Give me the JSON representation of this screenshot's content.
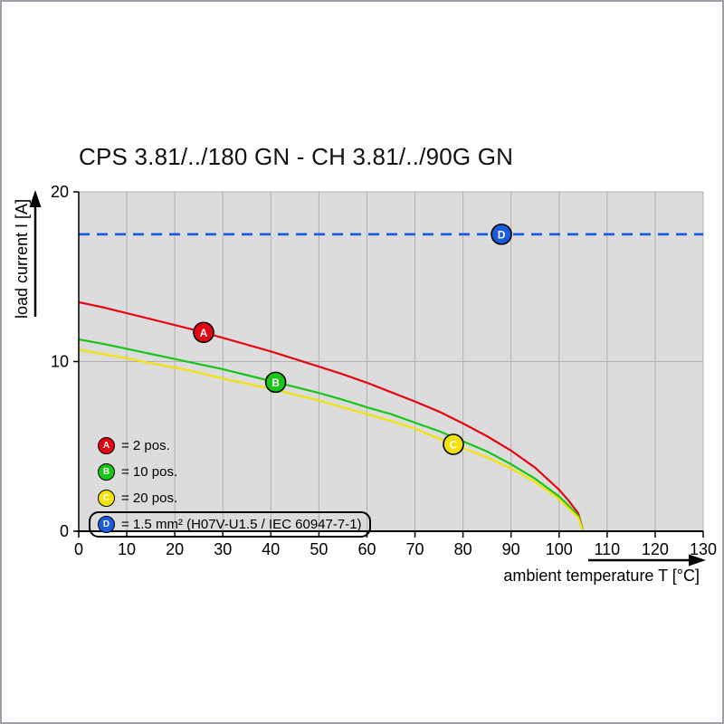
{
  "chart_data": {
    "type": "line",
    "title": "CPS 3.81/../180 GN - CH 3.81/../90G GN",
    "xlabel": "ambient temperature T [°C]",
    "ylabel": "load current I [A]",
    "xlim": [
      0,
      130
    ],
    "ylim": [
      0,
      20
    ],
    "x_ticks": [
      0,
      10,
      20,
      30,
      40,
      50,
      60,
      70,
      80,
      90,
      100,
      110,
      120,
      130
    ],
    "y_ticks": [
      0,
      10,
      20
    ],
    "grid": true,
    "legend_position": "bottom-left-inside",
    "plot_background": "#dcdcdc",
    "grid_color": "#b0b0b0",
    "series": [
      {
        "id": "A",
        "label": "= 2 pos.",
        "color": "#e30613",
        "type": "curve",
        "marker_t": 26,
        "points": [
          [
            0,
            13.5
          ],
          [
            5,
            13.2
          ],
          [
            10,
            12.85
          ],
          [
            15,
            12.5
          ],
          [
            20,
            12.15
          ],
          [
            25,
            11.8
          ],
          [
            30,
            11.4
          ],
          [
            35,
            11.0
          ],
          [
            40,
            10.6
          ],
          [
            45,
            10.15
          ],
          [
            50,
            9.7
          ],
          [
            55,
            9.25
          ],
          [
            60,
            8.75
          ],
          [
            65,
            8.2
          ],
          [
            70,
            7.65
          ],
          [
            75,
            7.05
          ],
          [
            80,
            6.35
          ],
          [
            85,
            5.6
          ],
          [
            90,
            4.75
          ],
          [
            95,
            3.75
          ],
          [
            100,
            2.45
          ],
          [
            102,
            1.8
          ],
          [
            104,
            1.05
          ],
          [
            105,
            0
          ]
        ]
      },
      {
        "id": "B",
        "label": "= 10 pos.",
        "color": "#17c617",
        "type": "curve",
        "marker_t": 41,
        "points": [
          [
            0,
            11.3
          ],
          [
            5,
            11.05
          ],
          [
            10,
            10.75
          ],
          [
            15,
            10.45
          ],
          [
            20,
            10.15
          ],
          [
            25,
            9.85
          ],
          [
            30,
            9.55
          ],
          [
            35,
            9.2
          ],
          [
            40,
            8.85
          ],
          [
            45,
            8.5
          ],
          [
            50,
            8.15
          ],
          [
            55,
            7.75
          ],
          [
            60,
            7.3
          ],
          [
            65,
            6.9
          ],
          [
            70,
            6.4
          ],
          [
            75,
            5.9
          ],
          [
            80,
            5.3
          ],
          [
            85,
            4.7
          ],
          [
            90,
            3.95
          ],
          [
            95,
            3.1
          ],
          [
            100,
            2.05
          ],
          [
            102,
            1.5
          ],
          [
            104,
            0.9
          ],
          [
            105,
            0
          ]
        ]
      },
      {
        "id": "C",
        "label": "= 20 pos.",
        "color": "#f2e205",
        "type": "curve",
        "marker_t": 78,
        "points": [
          [
            0,
            10.7
          ],
          [
            5,
            10.45
          ],
          [
            10,
            10.2
          ],
          [
            15,
            9.9
          ],
          [
            20,
            9.65
          ],
          [
            25,
            9.35
          ],
          [
            30,
            9.0
          ],
          [
            35,
            8.7
          ],
          [
            40,
            8.4
          ],
          [
            45,
            8.05
          ],
          [
            50,
            7.7
          ],
          [
            55,
            7.3
          ],
          [
            60,
            6.9
          ],
          [
            65,
            6.5
          ],
          [
            70,
            6.05
          ],
          [
            75,
            5.45
          ],
          [
            80,
            4.9
          ],
          [
            85,
            4.35
          ],
          [
            90,
            3.7
          ],
          [
            95,
            2.9
          ],
          [
            100,
            1.9
          ],
          [
            102,
            1.35
          ],
          [
            104,
            0.8
          ],
          [
            105,
            0
          ]
        ]
      },
      {
        "id": "D",
        "label": "= 1.5 mm² (H07V-U1.5 / IEC 60947-7-1)",
        "color": "#1b5cdf",
        "type": "dashed-line",
        "value": 17.5,
        "marker_t": 88
      }
    ]
  }
}
